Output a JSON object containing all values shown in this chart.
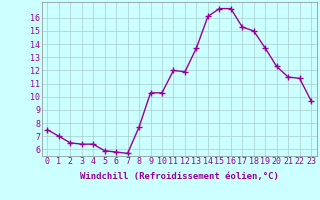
{
  "x": [
    0,
    1,
    2,
    3,
    4,
    5,
    6,
    7,
    8,
    9,
    10,
    11,
    12,
    13,
    14,
    15,
    16,
    17,
    18,
    19,
    20,
    21,
    22,
    23
  ],
  "y": [
    7.5,
    7.0,
    6.5,
    6.4,
    6.4,
    5.9,
    5.8,
    5.7,
    7.7,
    10.3,
    10.3,
    12.0,
    11.9,
    13.7,
    16.1,
    16.7,
    16.7,
    15.3,
    15.0,
    13.7,
    12.3,
    11.5,
    11.4,
    9.7
  ],
  "line_color": "#990099",
  "marker": "+",
  "markersize": 4,
  "linewidth": 1.0,
  "bg_color": "#ccffff",
  "grid_color": "#aacccc",
  "xlabel": "Windchill (Refroidissement éolien,°C)",
  "xlabel_fontsize": 6.5,
  "tick_fontsize": 6.0,
  "yticks": [
    6,
    7,
    8,
    9,
    10,
    11,
    12,
    13,
    14,
    15,
    16
  ],
  "xticks": [
    0,
    1,
    2,
    3,
    4,
    5,
    6,
    7,
    8,
    9,
    10,
    11,
    12,
    13,
    14,
    15,
    16,
    17,
    18,
    19,
    20,
    21,
    22,
    23
  ],
  "ylim": [
    5.5,
    17.2
  ],
  "xlim": [
    -0.5,
    23.5
  ]
}
